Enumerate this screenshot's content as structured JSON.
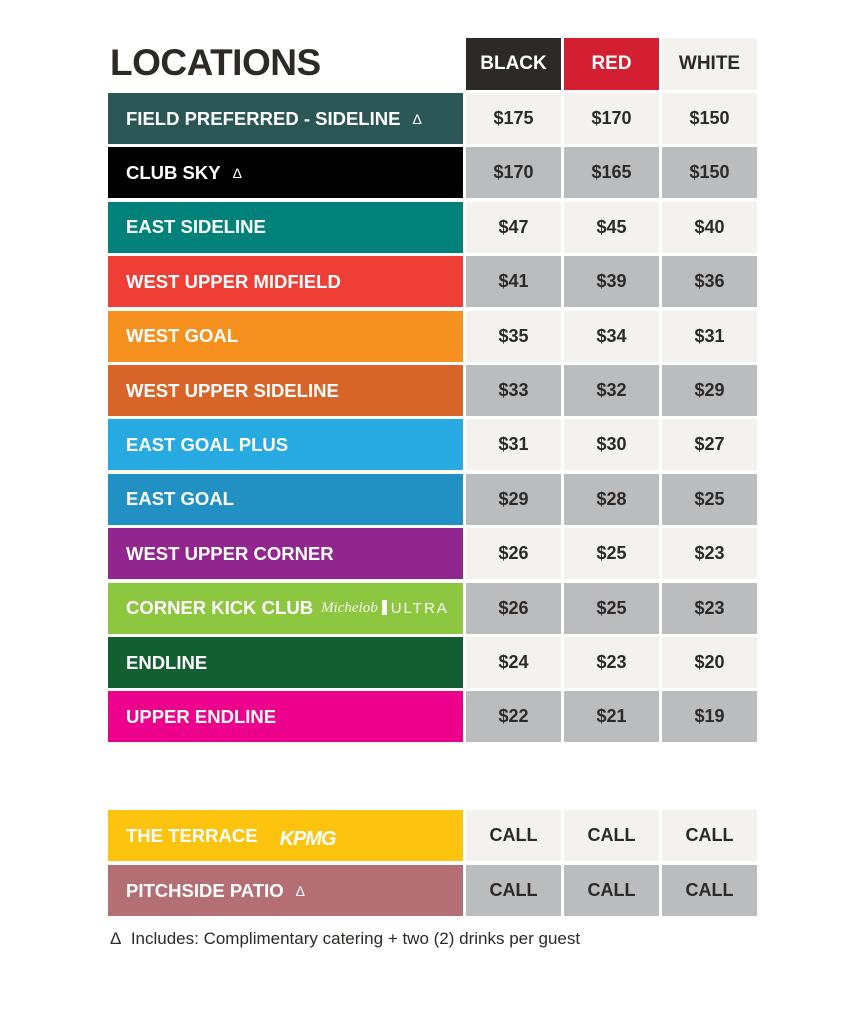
{
  "title": "LOCATIONS",
  "tiers": [
    {
      "label": "BLACK",
      "bg": "#2d2926",
      "fg": "#ffffff"
    },
    {
      "label": "RED",
      "bg": "#d31f31",
      "fg": "#ffffff"
    },
    {
      "label": "WHITE",
      "bg": "#f3f2ee",
      "fg": "#2d2926"
    }
  ],
  "delta_symbol": "Δ",
  "rows": [
    {
      "name": "FIELD PREFERRED - SIDELINE",
      "color": "#2a5755",
      "delta": true,
      "prices": [
        "$175",
        "$170",
        "$150"
      ]
    },
    {
      "name": "CLUB SKY",
      "color": "#000000",
      "delta": true,
      "prices": [
        "$170",
        "$165",
        "$150"
      ]
    },
    {
      "name": "EAST SIDELINE",
      "color": "#00827a",
      "prices": [
        "$47",
        "$45",
        "$40"
      ]
    },
    {
      "name": "WEST UPPER MIDFIELD",
      "color": "#ee3e36",
      "prices": [
        "$41",
        "$39",
        "$36"
      ]
    },
    {
      "name": "WEST GOAL",
      "color": "#f6901e",
      "prices": [
        "$35",
        "$34",
        "$31"
      ]
    },
    {
      "name": "WEST UPPER SIDELINE",
      "color": "#d76428",
      "prices": [
        "$33",
        "$32",
        "$29"
      ]
    },
    {
      "name": "EAST GOAL PLUS",
      "color": "#27aae1",
      "prices": [
        "$31",
        "$30",
        "$27"
      ]
    },
    {
      "name": "EAST GOAL",
      "color": "#2191c4",
      "prices": [
        "$29",
        "$28",
        "$25"
      ]
    },
    {
      "name": "WEST UPPER CORNER",
      "color": "#90268e",
      "prices": [
        "$26",
        "$25",
        "$23"
      ]
    },
    {
      "name": "CORNER KICK CLUB",
      "color": "#8dc63f",
      "sponsor": "michelob",
      "sponsor_text": [
        "Michelob",
        "ULTRA"
      ],
      "prices": [
        "$26",
        "$25",
        "$23"
      ]
    },
    {
      "name": "ENDLINE",
      "color": "#135f32",
      "prices": [
        "$24",
        "$23",
        "$20"
      ]
    },
    {
      "name": "UPPER ENDLINE",
      "color": "#ec008c",
      "prices": [
        "$22",
        "$21",
        "$19"
      ]
    }
  ],
  "special_rows": [
    {
      "name": "THE TERRACE",
      "color": "#fdc40f",
      "sponsor": "kpmg",
      "sponsor_text": [
        "KPMG"
      ],
      "prices": [
        "CALL",
        "CALL",
        "CALL"
      ]
    },
    {
      "name": "PITCHSIDE PATIO",
      "color": "#b46f74",
      "delta": true,
      "prices": [
        "CALL",
        "CALL",
        "CALL"
      ]
    }
  ],
  "footnote": "Includes: Complimentary catering + two (2) drinks per guest"
}
